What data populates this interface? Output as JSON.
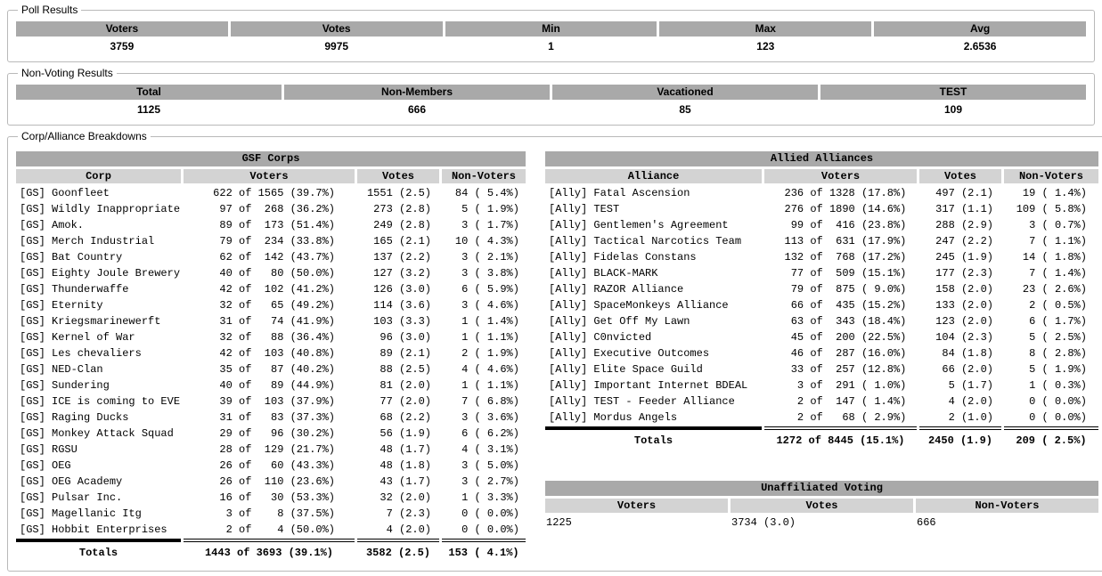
{
  "colors": {
    "group_header_bg": "#a9a9a9",
    "column_header_bg": "#d3d3d3",
    "totals_border": "#000000",
    "fieldset_border": "#b9b9b9"
  },
  "poll_results": {
    "legend": "Poll Results",
    "columns": [
      {
        "label": "Voters",
        "value": "3759"
      },
      {
        "label": "Votes",
        "value": "9975"
      },
      {
        "label": "Min",
        "value": "1"
      },
      {
        "label": "Max",
        "value": "123"
      },
      {
        "label": "Avg",
        "value": "2.6536"
      }
    ]
  },
  "non_voting_results": {
    "legend": "Non-Voting Results",
    "columns": [
      {
        "label": "Total",
        "value": "1125"
      },
      {
        "label": "Non-Members",
        "value": "666"
      },
      {
        "label": "Vacationed",
        "value": "85"
      },
      {
        "label": "TEST",
        "value": "109"
      }
    ]
  },
  "breakdowns": {
    "legend": "Corp/Alliance Breakdowns",
    "gsf_corps": {
      "title": "GSF Corps",
      "columns": [
        "Corp",
        "Voters",
        "Votes",
        "Non-Voters"
      ],
      "rows": [
        [
          "[GS] Goonfleet",
          " 622 of 1565 (39.7%)",
          "1551 (2.5)",
          " 84 ( 5.4%)"
        ],
        [
          "[GS] Wildly Inappropriate",
          "  97 of  268 (36.2%)",
          " 273 (2.8)",
          "  5 ( 1.9%)"
        ],
        [
          "[GS] Amok.",
          "  89 of  173 (51.4%)",
          " 249 (2.8)",
          "  3 ( 1.7%)"
        ],
        [
          "[GS] Merch Industrial",
          "  79 of  234 (33.8%)",
          " 165 (2.1)",
          " 10 ( 4.3%)"
        ],
        [
          "[GS] Bat Country",
          "  62 of  142 (43.7%)",
          " 137 (2.2)",
          "  3 ( 2.1%)"
        ],
        [
          "[GS] Eighty Joule Brewery",
          "  40 of   80 (50.0%)",
          " 127 (3.2)",
          "  3 ( 3.8%)"
        ],
        [
          "[GS] Thunderwaffe",
          "  42 of  102 (41.2%)",
          " 126 (3.0)",
          "  6 ( 5.9%)"
        ],
        [
          "[GS] Eternity",
          "  32 of   65 (49.2%)",
          " 114 (3.6)",
          "  3 ( 4.6%)"
        ],
        [
          "[GS] Kriegsmarinewerft",
          "  31 of   74 (41.9%)",
          " 103 (3.3)",
          "  1 ( 1.4%)"
        ],
        [
          "[GS] Kernel of War",
          "  32 of   88 (36.4%)",
          "  96 (3.0)",
          "  1 ( 1.1%)"
        ],
        [
          "[GS] Les chevaliers",
          "  42 of  103 (40.8%)",
          "  89 (2.1)",
          "  2 ( 1.9%)"
        ],
        [
          "[GS] NED-Clan",
          "  35 of   87 (40.2%)",
          "  88 (2.5)",
          "  4 ( 4.6%)"
        ],
        [
          "[GS] Sundering",
          "  40 of   89 (44.9%)",
          "  81 (2.0)",
          "  1 ( 1.1%)"
        ],
        [
          "[GS] ICE is coming to EVE",
          "  39 of  103 (37.9%)",
          "  77 (2.0)",
          "  7 ( 6.8%)"
        ],
        [
          "[GS] Raging Ducks",
          "  31 of   83 (37.3%)",
          "  68 (2.2)",
          "  3 ( 3.6%)"
        ],
        [
          "[GS] Monkey Attack Squad",
          "  29 of   96 (30.2%)",
          "  56 (1.9)",
          "  6 ( 6.2%)"
        ],
        [
          "[GS] RGSU",
          "  28 of  129 (21.7%)",
          "  48 (1.7)",
          "  4 ( 3.1%)"
        ],
        [
          "[GS] OEG",
          "  26 of   60 (43.3%)",
          "  48 (1.8)",
          "  3 ( 5.0%)"
        ],
        [
          "[GS] OEG Academy",
          "  26 of  110 (23.6%)",
          "  43 (1.7)",
          "  3 ( 2.7%)"
        ],
        [
          "[GS] Pulsar Inc.",
          "  16 of   30 (53.3%)",
          "  32 (2.0)",
          "  1 ( 3.3%)"
        ],
        [
          "[GS] Magellanic Itg",
          "   3 of    8 (37.5%)",
          "   7 (2.3)",
          "  0 ( 0.0%)"
        ],
        [
          "[GS] Hobbit Enterprises",
          "   2 of    4 (50.0%)",
          "   4 (2.0)",
          "  0 ( 0.0%)"
        ]
      ],
      "totals": [
        "Totals",
        "1443 of 3693 (39.1%)",
        "3582 (2.5)",
        "153 ( 4.1%)"
      ]
    },
    "allied_alliances": {
      "title": "Allied Alliances",
      "columns": [
        "Alliance",
        "Voters",
        "Votes",
        "Non-Voters"
      ],
      "rows": [
        [
          "[Ally] Fatal Ascension",
          " 236 of 1328 (17.8%)",
          " 497 (2.1)",
          " 19 ( 1.4%)"
        ],
        [
          "[Ally] TEST",
          " 276 of 1890 (14.6%)",
          " 317 (1.1)",
          "109 ( 5.8%)"
        ],
        [
          "[Ally] Gentlemen's Agreement",
          "  99 of  416 (23.8%)",
          " 288 (2.9)",
          "  3 ( 0.7%)"
        ],
        [
          "[Ally] Tactical Narcotics Team",
          " 113 of  631 (17.9%)",
          " 247 (2.2)",
          "  7 ( 1.1%)"
        ],
        [
          "[Ally] Fidelas Constans",
          " 132 of  768 (17.2%)",
          " 245 (1.9)",
          " 14 ( 1.8%)"
        ],
        [
          "[Ally] BLACK-MARK",
          "  77 of  509 (15.1%)",
          " 177 (2.3)",
          "  7 ( 1.4%)"
        ],
        [
          "[Ally] RAZOR Alliance",
          "  79 of  875 ( 9.0%)",
          " 158 (2.0)",
          " 23 ( 2.6%)"
        ],
        [
          "[Ally] SpaceMonkeys Alliance",
          "  66 of  435 (15.2%)",
          " 133 (2.0)",
          "  2 ( 0.5%)"
        ],
        [
          "[Ally] Get Off My Lawn",
          "  63 of  343 (18.4%)",
          " 123 (2.0)",
          "  6 ( 1.7%)"
        ],
        [
          "[Ally] C0nvicted",
          "  45 of  200 (22.5%)",
          " 104 (2.3)",
          "  5 ( 2.5%)"
        ],
        [
          "[Ally] Executive Outcomes",
          "  46 of  287 (16.0%)",
          "  84 (1.8)",
          "  8 ( 2.8%)"
        ],
        [
          "[Ally] Elite Space Guild",
          "  33 of  257 (12.8%)",
          "  66 (2.0)",
          "  5 ( 1.9%)"
        ],
        [
          "[Ally] Important Internet BDEAL",
          "   3 of  291 ( 1.0%)",
          "   5 (1.7)",
          "  1 ( 0.3%)"
        ],
        [
          "[Ally] TEST - Feeder Alliance",
          "   2 of  147 ( 1.4%)",
          "   4 (2.0)",
          "  0 ( 0.0%)"
        ],
        [
          "[Ally] Mordus Angels",
          "   2 of   68 ( 2.9%)",
          "   2 (1.0)",
          "  0 ( 0.0%)"
        ]
      ],
      "totals": [
        "Totals",
        "1272 of 8445 (15.1%)",
        "2450 (1.9)",
        "209 ( 2.5%)"
      ]
    },
    "unaffiliated": {
      "title": "Unaffiliated Voting",
      "columns": [
        "Voters",
        "Votes",
        "Non-Voters"
      ],
      "rows": [
        [
          "1225",
          "3734 (3.0)",
          "666"
        ]
      ]
    }
  }
}
